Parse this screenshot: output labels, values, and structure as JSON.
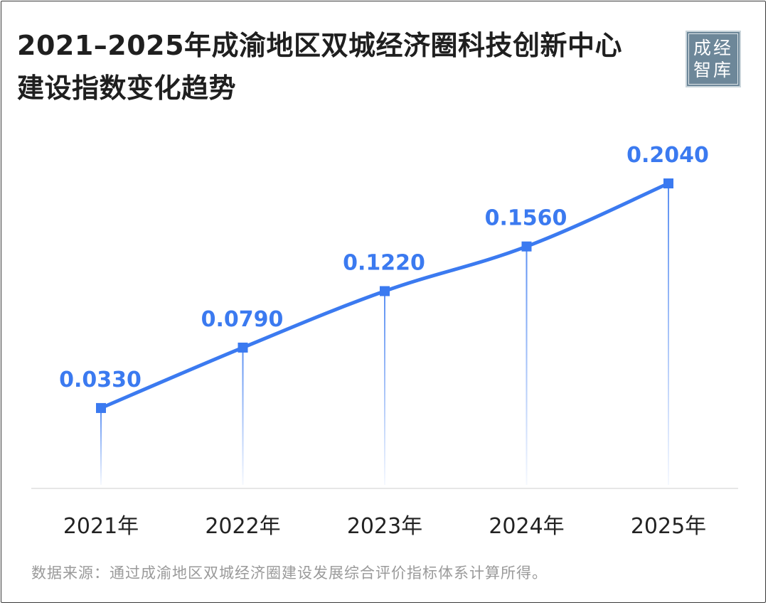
{
  "title": {
    "line1": "2021–2025年成渝地区双城经济圈科技创新中心",
    "line2": "建设指数变化趋势"
  },
  "logo": {
    "line1": "成经",
    "line2": "智库"
  },
  "chart_data": {
    "type": "line",
    "categories": [
      "2021年",
      "2022年",
      "2023年",
      "2024年",
      "2025年"
    ],
    "series": [
      {
        "values": [
          0.033,
          0.079,
          0.122,
          0.156,
          0.204
        ]
      }
    ],
    "data_labels": [
      "0.0330",
      "0.0790",
      "0.1220",
      "0.1560",
      "0.2040"
    ],
    "ylim": [
      -0.0255,
      0.204
    ],
    "marker": "square",
    "grid": false,
    "legend": "none",
    "colors": {
      "line": "#3b7af0",
      "label": "#3b7af0",
      "axis": "#e6e6e6",
      "tick_text": "#222222"
    }
  },
  "source": "数据来源：通过成渝地区双城经济圈建设发展综合评价指标体系计算所得。"
}
